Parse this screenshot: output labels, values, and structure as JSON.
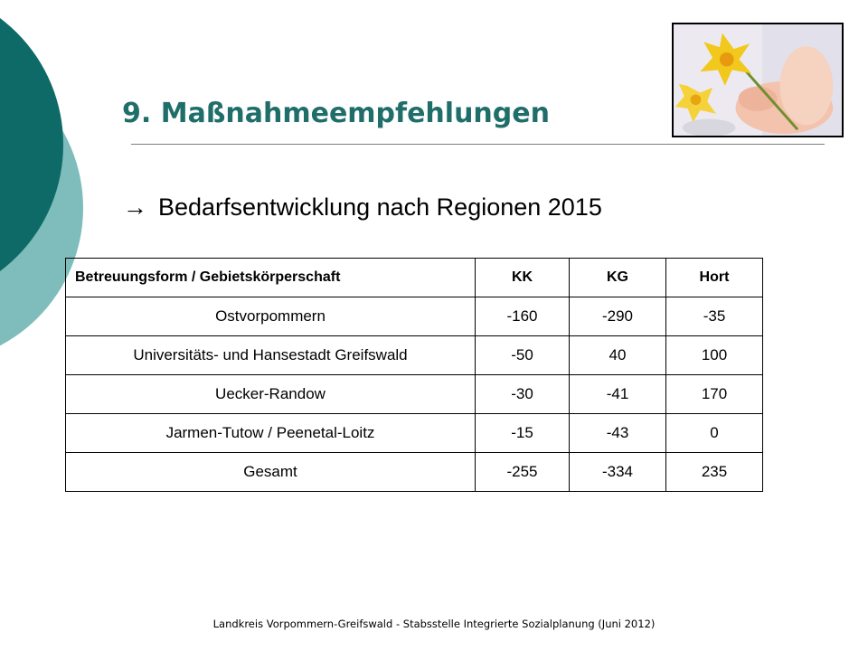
{
  "slide": {
    "title": "9. Maßnahmeempfehlungen",
    "subtitle_arrow": "→",
    "subtitle": "Bedarfsentwicklung nach  Regionen 2015",
    "footer": "Landkreis Vorpommern-Greifswald - Stabsstelle Integrierte Sozialplanung (Juni 2012)"
  },
  "colors": {
    "title": "#1f6e6a",
    "deco_dark": "#0e6a67",
    "deco_light": "#7fbdbd"
  },
  "table": {
    "headers": [
      "Betreuungsform / Gebietskörperschaft",
      "KK",
      "KG",
      "Hort"
    ],
    "rows": [
      [
        "Ostvorpommern",
        "-160",
        "-290",
        "-35"
      ],
      [
        "Universitäts- und Hansestadt Greifswald",
        "-50",
        "40",
        "100"
      ],
      [
        "Uecker-Randow",
        "-30",
        "-41",
        "170"
      ],
      [
        "Jarmen-Tutow / Peenetal-Loitz",
        "-15",
        "-43",
        "0"
      ],
      [
        "Gesamt",
        "-255",
        "-334",
        "235"
      ]
    ]
  }
}
